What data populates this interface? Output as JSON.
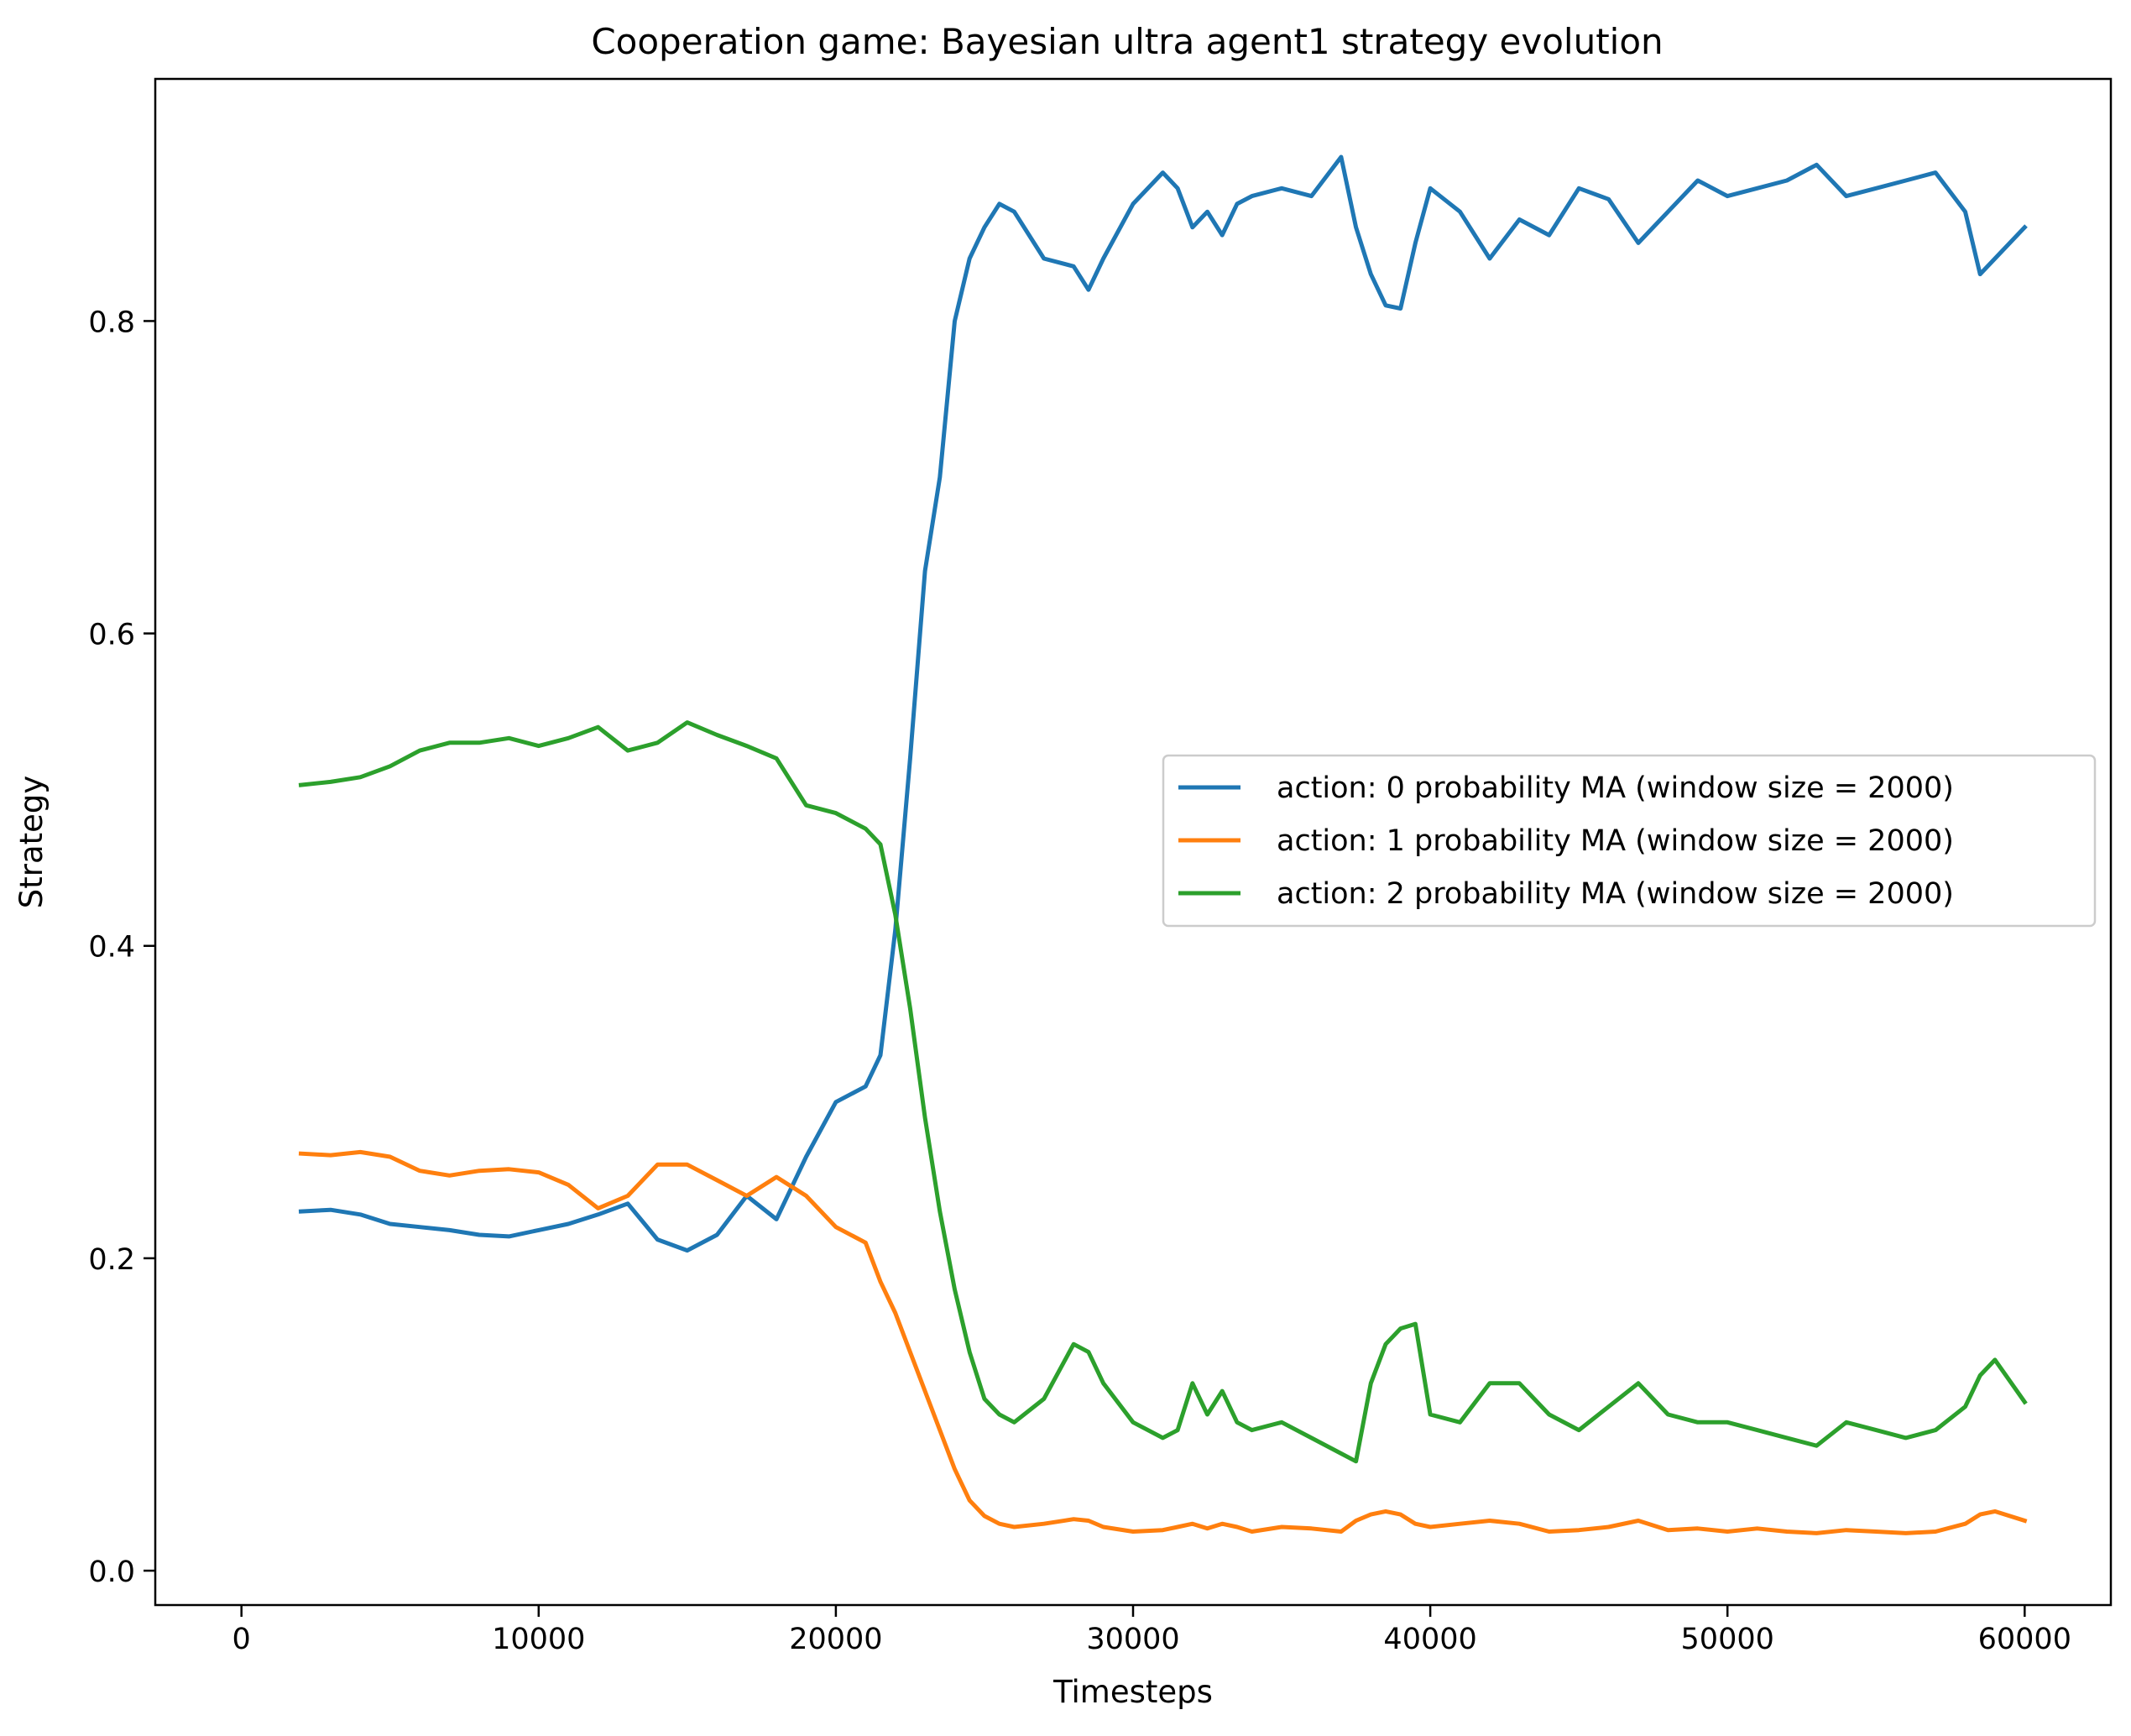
{
  "chart_data": {
    "type": "line",
    "title": "Cooperation game: Bayesian ultra agent1 strategy evolution",
    "xlabel": "Timesteps",
    "ylabel": "Strategy",
    "xlim": [
      -2900,
      62900
    ],
    "ylim": [
      -0.022,
      0.955
    ],
    "xticks": [
      0,
      10000,
      20000,
      30000,
      40000,
      50000,
      60000
    ],
    "xtick_labels": [
      "0",
      "10000",
      "20000",
      "30000",
      "40000",
      "50000",
      "60000"
    ],
    "yticks": [
      0.0,
      0.2,
      0.4,
      0.6,
      0.8
    ],
    "ytick_labels": [
      "0.0",
      "0.2",
      "0.4",
      "0.6",
      "0.8"
    ],
    "grid": false,
    "legend": {
      "position": "center-right"
    },
    "x": [
      2000,
      3000,
      4000,
      5000,
      6000,
      7000,
      8000,
      9000,
      10000,
      11000,
      12000,
      13000,
      14000,
      15000,
      16000,
      17000,
      18000,
      19000,
      20000,
      21000,
      21500,
      22000,
      22500,
      23000,
      23500,
      24000,
      24500,
      25000,
      25500,
      26000,
      27000,
      28000,
      28500,
      29000,
      30000,
      31000,
      31500,
      32000,
      32500,
      33000,
      33500,
      34000,
      35000,
      36000,
      37000,
      37500,
      38000,
      38500,
      39000,
      39500,
      40000,
      41000,
      42000,
      43000,
      44000,
      45000,
      46000,
      47000,
      48000,
      49000,
      50000,
      51000,
      52000,
      53000,
      54000,
      55000,
      56000,
      57000,
      58000,
      58500,
      59000,
      60000
    ],
    "series": [
      {
        "name": "action: 0 probability MA (window size = 2000)",
        "color": "#1f77b4",
        "values": [
          0.23,
          0.231,
          0.228,
          0.222,
          0.22,
          0.218,
          0.215,
          0.214,
          0.218,
          0.222,
          0.228,
          0.235,
          0.212,
          0.205,
          0.215,
          0.24,
          0.225,
          0.265,
          0.3,
          0.31,
          0.33,
          0.41,
          0.52,
          0.64,
          0.7,
          0.8,
          0.84,
          0.86,
          0.875,
          0.87,
          0.84,
          0.835,
          0.82,
          0.84,
          0.875,
          0.895,
          0.885,
          0.86,
          0.87,
          0.855,
          0.875,
          0.88,
          0.885,
          0.88,
          0.905,
          0.86,
          0.83,
          0.81,
          0.808,
          0.85,
          0.885,
          0.87,
          0.84,
          0.865,
          0.855,
          0.885,
          0.878,
          0.85,
          0.87,
          0.89,
          0.88,
          0.885,
          0.89,
          0.9,
          0.88,
          0.885,
          0.89,
          0.895,
          0.87,
          0.83,
          0.84,
          0.86
        ]
      },
      {
        "name": "action: 1 probability MA (window size = 2000)",
        "color": "#ff7f0e",
        "values": [
          0.267,
          0.266,
          0.268,
          0.265,
          0.256,
          0.253,
          0.256,
          0.257,
          0.255,
          0.247,
          0.232,
          0.24,
          0.26,
          0.26,
          0.25,
          0.24,
          0.252,
          0.24,
          0.22,
          0.21,
          0.185,
          0.165,
          0.14,
          0.115,
          0.09,
          0.065,
          0.045,
          0.035,
          0.03,
          0.028,
          0.03,
          0.033,
          0.032,
          0.028,
          0.025,
          0.026,
          0.028,
          0.03,
          0.027,
          0.03,
          0.028,
          0.025,
          0.028,
          0.027,
          0.025,
          0.032,
          0.036,
          0.038,
          0.036,
          0.03,
          0.028,
          0.03,
          0.032,
          0.03,
          0.025,
          0.026,
          0.028,
          0.032,
          0.026,
          0.027,
          0.025,
          0.027,
          0.025,
          0.024,
          0.026,
          0.025,
          0.024,
          0.025,
          0.03,
          0.036,
          0.038,
          0.032
        ]
      },
      {
        "name": "action: 2 probability MA (window size = 2000)",
        "color": "#2ca02c",
        "values": [
          0.503,
          0.505,
          0.508,
          0.515,
          0.525,
          0.53,
          0.53,
          0.533,
          0.528,
          0.533,
          0.54,
          0.525,
          0.53,
          0.543,
          0.535,
          0.528,
          0.52,
          0.49,
          0.485,
          0.475,
          0.465,
          0.42,
          0.36,
          0.29,
          0.23,
          0.18,
          0.14,
          0.11,
          0.1,
          0.095,
          0.11,
          0.145,
          0.14,
          0.12,
          0.095,
          0.085,
          0.09,
          0.12,
          0.1,
          0.115,
          0.095,
          0.09,
          0.095,
          0.085,
          0.075,
          0.07,
          0.12,
          0.145,
          0.155,
          0.158,
          0.1,
          0.095,
          0.12,
          0.12,
          0.1,
          0.09,
          0.105,
          0.12,
          0.1,
          0.095,
          0.095,
          0.09,
          0.085,
          0.08,
          0.095,
          0.09,
          0.085,
          0.09,
          0.105,
          0.125,
          0.135,
          0.108
        ]
      }
    ]
  }
}
